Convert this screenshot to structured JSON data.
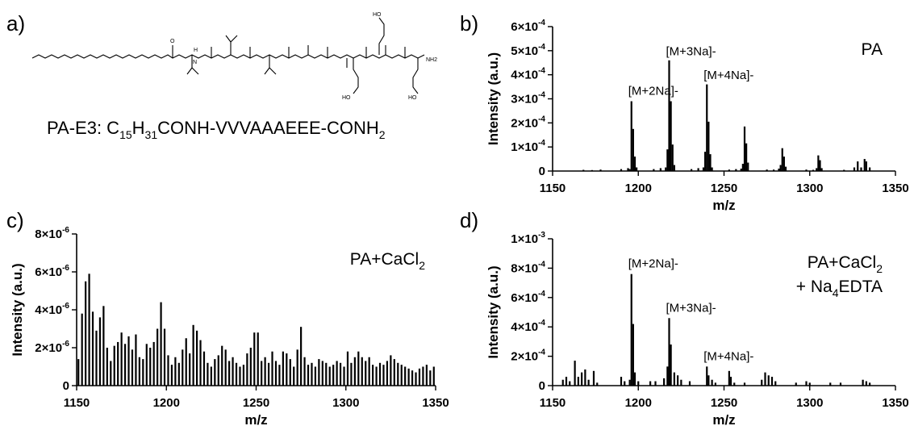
{
  "panels": {
    "a": {
      "letter": "a)",
      "formula": {
        "prefix": "PA-E3: C",
        "sub1": "15",
        "mid1": "H",
        "sub2": "31",
        "mid2": "CONH-VVVAAAEEE-CONH",
        "sub3": "2"
      },
      "structure_labels": {
        "o": "O",
        "n": "N",
        "h": "H",
        "ho": "HO",
        "nh2": "NH2"
      }
    }
  },
  "chart_data": [
    {
      "panel": "b",
      "type": "bar",
      "letter": "b)",
      "tag": "PA",
      "tag_sub": "",
      "tag_line2": "",
      "xlabel": "m/z",
      "ylabel": "Intensity (a.u.)",
      "xlim": [
        1150,
        1350
      ],
      "ylim": [
        0,
        0.0006
      ],
      "xticks": [
        "1150",
        "1200",
        "1250",
        "1300",
        "1350"
      ],
      "yticks": [
        {
          "value": 0,
          "mant": "0",
          "exp": ""
        },
        {
          "value": 0.0001,
          "mant": "1×10",
          "exp": "-4"
        },
        {
          "value": 0.0002,
          "mant": "2×10",
          "exp": "-4"
        },
        {
          "value": 0.0003,
          "mant": "3×10",
          "exp": "-4"
        },
        {
          "value": 0.0004,
          "mant": "4×10",
          "exp": "-4"
        },
        {
          "value": 0.0005,
          "mant": "5×10",
          "exp": "-4"
        },
        {
          "value": 0.0006,
          "mant": "6×10",
          "exp": "-4"
        }
      ],
      "annotations": [
        {
          "text": "[M+2Na]-",
          "x": 1196,
          "y": 0.00029
        },
        {
          "text": "[M+3Na]-",
          "x": 1218,
          "y": 0.000455
        },
        {
          "text": "[M+4Na]-",
          "x": 1240,
          "y": 0.000355
        }
      ],
      "x": [
        1168,
        1173,
        1178,
        1190,
        1194,
        1195,
        1196,
        1197,
        1198,
        1199,
        1209,
        1213,
        1216,
        1217,
        1218,
        1219,
        1220,
        1221,
        1231,
        1235,
        1238,
        1239,
        1240,
        1241,
        1242,
        1243,
        1253,
        1257,
        1260,
        1261,
        1262,
        1263,
        1264,
        1275,
        1279,
        1282,
        1283,
        1284,
        1285,
        1286,
        1298,
        1302,
        1304,
        1305,
        1306,
        1307,
        1320,
        1326,
        1328,
        1330,
        1332,
        1333,
        1335
      ],
      "values": [
        5e-06,
        4e-06,
        6e-06,
        8e-06,
        1.2e-05,
        8e-06,
        0.00029,
        0.000175,
        6e-05,
        1.5e-05,
        8e-06,
        1.2e-05,
        1.5e-05,
        9e-05,
        0.00046,
        0.00029,
        0.00011,
        2.5e-05,
        8e-06,
        1.2e-05,
        1.5e-05,
        8e-05,
        0.00036,
        0.000205,
        7e-05,
        1.5e-05,
        6e-06,
        8e-06,
        1e-05,
        3e-05,
        0.000185,
        0.000115,
        3.5e-05,
        6e-06,
        6e-06,
        1e-05,
        2.5e-05,
        9.5e-05,
        6e-05,
        1.8e-05,
        6e-06,
        5e-06,
        1.2e-05,
        6.5e-05,
        4.5e-05,
        1.2e-05,
        5e-06,
        1.5e-05,
        4e-05,
        1.5e-05,
        5e-05,
        4e-05,
        1.5e-05
      ]
    },
    {
      "panel": "c",
      "type": "bar",
      "letter": "c)",
      "tag": "PA+CaCl",
      "tag_sub": "2",
      "tag_line2": "",
      "xlabel": "m/z",
      "ylabel": "Intensity (a.u.)",
      "xlim": [
        1150,
        1350
      ],
      "ylim": [
        0,
        8e-06
      ],
      "xticks": [
        "1150",
        "1200",
        "1250",
        "1300",
        "1350"
      ],
      "yticks": [
        {
          "value": 0,
          "mant": "0",
          "exp": ""
        },
        {
          "value": 2e-06,
          "mant": "2×10",
          "exp": "-6"
        },
        {
          "value": 4e-06,
          "mant": "4×10",
          "exp": "-6"
        },
        {
          "value": 6e-06,
          "mant": "6×10",
          "exp": "-6"
        },
        {
          "value": 8e-06,
          "mant": "8×10",
          "exp": "-6"
        }
      ],
      "annotations": [],
      "x": [
        1151,
        1153,
        1155,
        1157,
        1159,
        1161,
        1163,
        1165,
        1167,
        1169,
        1171,
        1173,
        1175,
        1177,
        1179,
        1181,
        1183,
        1185,
        1187,
        1189,
        1191,
        1193,
        1195,
        1197,
        1199,
        1201,
        1203,
        1205,
        1207,
        1209,
        1211,
        1213,
        1215,
        1217,
        1219,
        1221,
        1223,
        1225,
        1227,
        1229,
        1231,
        1233,
        1235,
        1237,
        1239,
        1241,
        1243,
        1245,
        1247,
        1249,
        1251,
        1253,
        1255,
        1257,
        1259,
        1261,
        1263,
        1265,
        1267,
        1269,
        1271,
        1273,
        1275,
        1277,
        1279,
        1281,
        1283,
        1285,
        1287,
        1289,
        1291,
        1293,
        1295,
        1297,
        1299,
        1301,
        1303,
        1305,
        1307,
        1309,
        1311,
        1313,
        1315,
        1317,
        1319,
        1321,
        1323,
        1325,
        1327,
        1329,
        1331,
        1333,
        1335,
        1337,
        1339,
        1341,
        1343,
        1345,
        1347,
        1349
      ],
      "values": [
        1.4e-06,
        3.8e-06,
        5.5e-06,
        5.9e-06,
        3.9e-06,
        2.9e-06,
        3.6e-06,
        4.2e-06,
        2e-06,
        1.3e-06,
        2.1e-06,
        2.3e-06,
        2.8e-06,
        2.2e-06,
        2.6e-06,
        1.9e-06,
        2.7e-06,
        1.5e-06,
        1.4e-06,
        2.2e-06,
        2e-06,
        2.3e-06,
        3e-06,
        4.4e-06,
        3e-06,
        1.6e-06,
        1.1e-06,
        1.5e-06,
        1.2e-06,
        1.9e-06,
        2.5e-06,
        1.7e-06,
        3.2e-06,
        2.9e-06,
        2.4e-06,
        1.8e-06,
        1.2e-06,
        1e-06,
        1.4e-06,
        1.6e-06,
        2.1e-06,
        1.9e-06,
        1.3e-06,
        1.5e-06,
        1.2e-06,
        1e-06,
        1.1e-06,
        1.7e-06,
        2e-06,
        2.8e-06,
        2.8e-06,
        1.3e-06,
        1.5e-06,
        1.2e-06,
        1.8e-06,
        1.3e-06,
        1.1e-06,
        1.8e-06,
        1.7e-06,
        1.4e-06,
        1e-06,
        1.9e-06,
        3.1e-06,
        1.5e-06,
        1.1e-06,
        1.2e-06,
        1e-06,
        1.4e-06,
        1.3e-06,
        1.2e-06,
        1e-06,
        1.1e-06,
        1.3e-06,
        1.2e-06,
        1e-06,
        1.8e-06,
        1.2e-06,
        1.5e-06,
        1.8e-06,
        1.5e-06,
        1.3e-06,
        1.5e-06,
        1.1e-06,
        1e-06,
        1.2e-06,
        1.1e-06,
        1.3e-06,
        1.6e-06,
        1.4e-06,
        1.2e-06,
        1.1e-06,
        1e-06,
        9e-07,
        8e-07,
        7e-07,
        9e-07,
        1e-06,
        1.1e-06,
        8e-07,
        1e-06
      ]
    },
    {
      "panel": "d",
      "type": "bar",
      "letter": "d)",
      "tag": "PA+CaCl",
      "tag_sub": "2",
      "tag_line2": "+ Na",
      "tag_line2_sub": "4",
      "tag_line2_rest": "EDTA",
      "xlabel": "m/z",
      "ylabel": "Intensity (a.u.)",
      "xlim": [
        1150,
        1350
      ],
      "ylim": [
        0,
        0.001
      ],
      "xticks": [
        "1150",
        "1200",
        "1250",
        "1300",
        "1350"
      ],
      "yticks": [
        {
          "value": 0,
          "mant": "0",
          "exp": ""
        },
        {
          "value": 0.0002,
          "mant": "2×10",
          "exp": "-4"
        },
        {
          "value": 0.0004,
          "mant": "4×10",
          "exp": "-4"
        },
        {
          "value": 0.0006,
          "mant": "6×10",
          "exp": "-4"
        },
        {
          "value": 0.0008,
          "mant": "8×10",
          "exp": "-4"
        },
        {
          "value": 0.001,
          "mant": "1×10",
          "exp": "-3"
        }
      ],
      "annotations": [
        {
          "text": "[M+2Na]-",
          "x": 1196,
          "y": 0.00076
        },
        {
          "text": "[M+3Na]-",
          "x": 1218,
          "y": 0.00046
        },
        {
          "text": "[M+4Na]-",
          "x": 1240,
          "y": 0.00013
        }
      ],
      "x": [
        1156,
        1158,
        1160,
        1163,
        1165,
        1167,
        1169,
        1171,
        1174,
        1176,
        1190,
        1192,
        1195,
        1196,
        1197,
        1198,
        1200,
        1207,
        1210,
        1215,
        1217,
        1218,
        1219,
        1221,
        1223,
        1225,
        1230,
        1240,
        1241,
        1243,
        1245,
        1253,
        1254,
        1256,
        1262,
        1272,
        1274,
        1276,
        1278,
        1280,
        1292,
        1298,
        1300,
        1312,
        1318,
        1331,
        1333,
        1335
      ],
      "values": [
        4e-05,
        6e-05,
        3e-05,
        0.00017,
        6e-05,
        9e-05,
        0.00011,
        4e-05,
        0.0001,
        2e-05,
        6e-05,
        3e-05,
        4e-05,
        0.00076,
        0.00042,
        9e-05,
        3e-05,
        3e-05,
        3e-05,
        5e-05,
        0.00013,
        0.00046,
        0.00028,
        9e-05,
        7e-05,
        4e-05,
        3e-05,
        0.00013,
        7e-05,
        4e-05,
        2e-05,
        0.0001,
        6e-05,
        2e-05,
        2e-05,
        4e-05,
        9e-05,
        7e-05,
        6e-05,
        3e-05,
        2e-05,
        3e-05,
        2e-05,
        2e-05,
        2e-05,
        4e-05,
        3e-05,
        2e-05
      ]
    }
  ]
}
